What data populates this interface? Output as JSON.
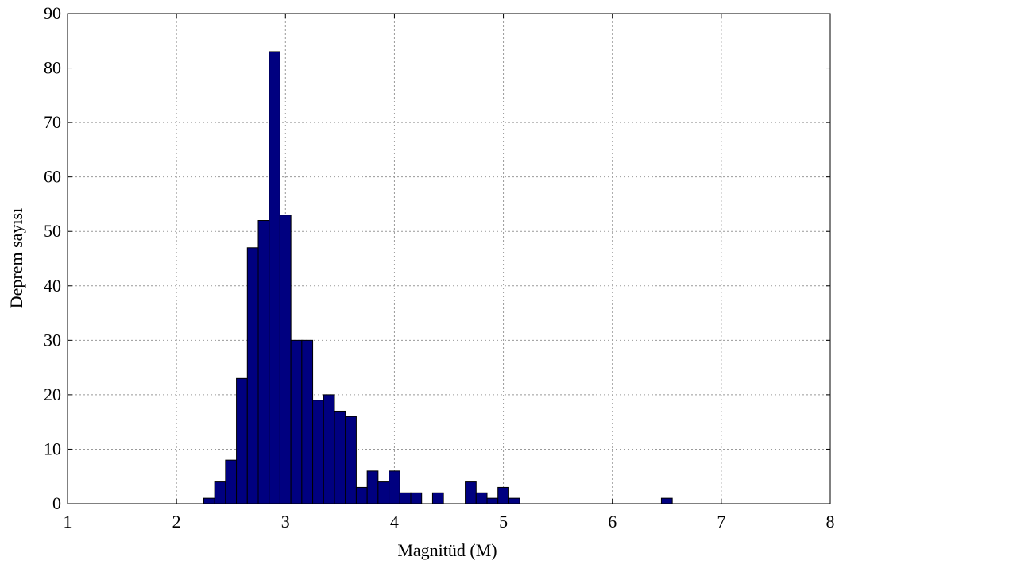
{
  "chart_data": {
    "type": "histogram",
    "x_label": "Magnitüd (M)",
    "y_label": "Deprem sayısı",
    "bins": [
      2.25,
      2.35,
      2.45,
      2.55,
      2.65,
      2.75,
      2.85,
      2.95,
      3.05,
      3.15,
      3.25,
      3.35,
      3.45,
      3.55,
      3.65,
      3.75,
      3.85,
      3.95,
      4.05,
      4.15,
      4.25,
      4.35,
      4.45,
      4.55,
      4.65,
      4.75,
      4.85,
      4.95,
      5.05,
      5.15,
      5.25,
      5.35,
      5.45,
      5.55,
      5.65,
      5.75,
      5.85,
      5.95,
      6.05,
      6.15,
      6.25,
      6.35,
      6.45,
      6.55
    ],
    "values": [
      1,
      4,
      8,
      23,
      47,
      52,
      83,
      53,
      30,
      30,
      19,
      20,
      17,
      16,
      3,
      6,
      4,
      6,
      2,
      2,
      0,
      2,
      0,
      0,
      4,
      2,
      1,
      3,
      1,
      0,
      0,
      0,
      0,
      0,
      0,
      0,
      0,
      0,
      0,
      0,
      0,
      0,
      1
    ],
    "color": "#000080",
    "xlim": [
      1,
      8
    ],
    "xticks": [
      1,
      2,
      3,
      4,
      5,
      6,
      7,
      8
    ],
    "ylim": [
      0,
      90
    ],
    "yticks": [
      0,
      10,
      20,
      30,
      40,
      50,
      60,
      70,
      80,
      90
    ],
    "grid": true
  }
}
